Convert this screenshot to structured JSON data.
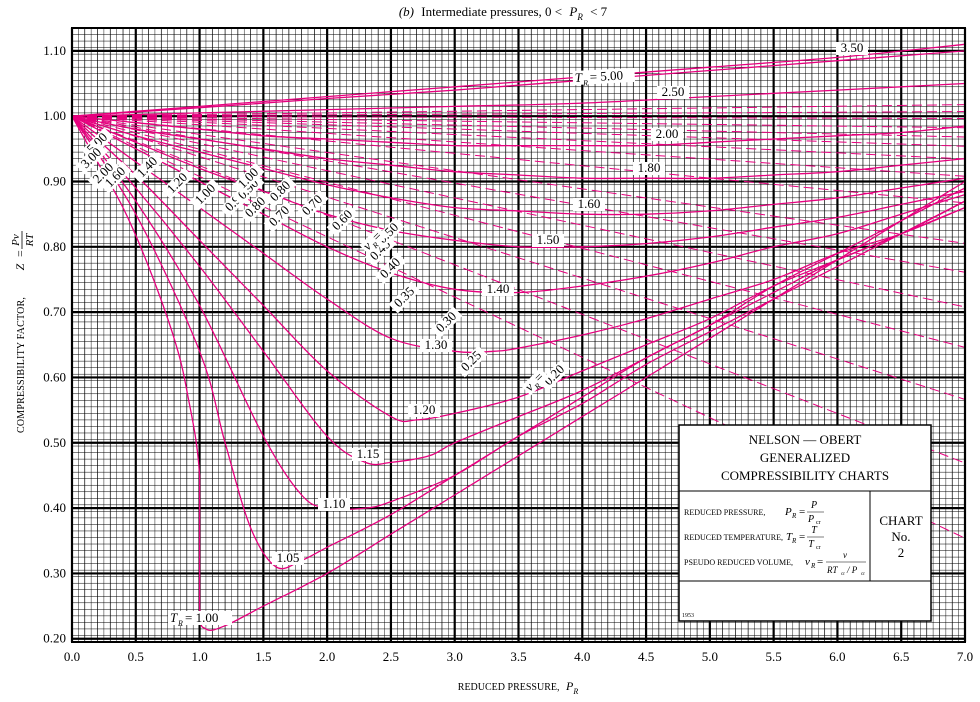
{
  "chart_data": {
    "type": "line",
    "title": "Intermediate pressures, 0 < P_R < 7",
    "title_prefix": "(b)",
    "title_text": "Intermediate pressures, 0 <",
    "title_symbol": "P",
    "title_sub": "R",
    "title_tail": "< 7",
    "xlabel": "REDUCED PRESSURE,",
    "xlabel_symbol": "P",
    "xlabel_sub": "R",
    "ylabel": "COMPRESSIBILITY FACTOR,",
    "ylabel_symbol": "Z",
    "ylabel_num": "Pv",
    "ylabel_den": "RT",
    "xlim": [
      0,
      7
    ],
    "ylim": [
      0.195,
      1.135
    ],
    "x_ticks": [
      "0.0",
      "0.5",
      "1.0",
      "1.5",
      "2.0",
      "2.5",
      "3.0",
      "3.5",
      "4.0",
      "4.5",
      "5.0",
      "5.5",
      "6.0",
      "6.5",
      "7.0"
    ],
    "y_ticks": [
      "0.20",
      "0.30",
      "0.40",
      "0.50",
      "0.60",
      "0.70",
      "0.80",
      "0.90",
      "1.00",
      "1.10"
    ],
    "grid": true,
    "isotherm_prefix": "T",
    "isotherm_sub": "R",
    "isotherms": [
      {
        "name": "1.00",
        "x": [
          0,
          0.2,
          0.4,
          0.6,
          0.8,
          0.9,
          1.0,
          1.0,
          1.05,
          1.2,
          1.5,
          2.0,
          2.5,
          3.0,
          3.5,
          4.0,
          4.5,
          5.0,
          5.5,
          6.0,
          6.5,
          7.0
        ],
        "y": [
          1.0,
          0.93,
          0.86,
          0.77,
          0.66,
          0.58,
          0.45,
          0.25,
          0.215,
          0.22,
          0.25,
          0.3,
          0.36,
          0.42,
          0.48,
          0.54,
          0.6,
          0.66,
          0.72,
          0.78,
          0.84,
          0.9
        ]
      },
      {
        "name": "1.05",
        "x": [
          0,
          0.5,
          1.0,
          1.2,
          1.4,
          1.6,
          1.8,
          2.0,
          2.5,
          3.0,
          3.5,
          4.0,
          4.5,
          5.0,
          5.5,
          6.0,
          6.5,
          7.0
        ],
        "y": [
          1.0,
          0.85,
          0.64,
          0.5,
          0.37,
          0.31,
          0.32,
          0.34,
          0.39,
          0.45,
          0.51,
          0.57,
          0.63,
          0.68,
          0.74,
          0.79,
          0.84,
          0.89
        ]
      },
      {
        "name": "1.10",
        "x": [
          0,
          0.5,
          1.0,
          1.5,
          1.8,
          2.0,
          2.3,
          2.5,
          3.0,
          3.5,
          4.0,
          4.5,
          5.0,
          5.5,
          6.0,
          6.5,
          7.0
        ],
        "y": [
          1.0,
          0.87,
          0.71,
          0.51,
          0.42,
          0.4,
          0.4,
          0.41,
          0.45,
          0.51,
          0.56,
          0.62,
          0.67,
          0.72,
          0.77,
          0.82,
          0.87
        ]
      },
      {
        "name": "1.15",
        "x": [
          0,
          0.5,
          1.0,
          1.5,
          2.0,
          2.3,
          2.5,
          2.8,
          3.0,
          3.5,
          4.0,
          4.5,
          5.0,
          5.5,
          6.0,
          6.5,
          7.0
        ],
        "y": [
          1.0,
          0.89,
          0.77,
          0.64,
          0.51,
          0.47,
          0.47,
          0.48,
          0.5,
          0.54,
          0.58,
          0.63,
          0.68,
          0.73,
          0.78,
          0.82,
          0.87
        ]
      },
      {
        "name": "1.20",
        "x": [
          0,
          0.5,
          1.0,
          1.5,
          2.0,
          2.5,
          2.7,
          3.0,
          3.5,
          4.0,
          4.5,
          5.0,
          5.5,
          6.0,
          6.5,
          7.0
        ],
        "y": [
          1.0,
          0.91,
          0.81,
          0.71,
          0.61,
          0.54,
          0.535,
          0.545,
          0.57,
          0.61,
          0.65,
          0.69,
          0.74,
          0.78,
          0.82,
          0.86
        ]
      },
      {
        "name": "1.30",
        "x": [
          0,
          0.5,
          1.0,
          1.5,
          2.0,
          2.5,
          3.0,
          3.3,
          3.5,
          4.0,
          4.5,
          5.0,
          5.5,
          6.0,
          6.5,
          7.0
        ],
        "y": [
          1.0,
          0.93,
          0.86,
          0.79,
          0.72,
          0.66,
          0.64,
          0.64,
          0.645,
          0.665,
          0.69,
          0.72,
          0.75,
          0.79,
          0.82,
          0.86
        ]
      },
      {
        "name": "1.40",
        "x": [
          0,
          0.5,
          1.0,
          1.5,
          2.0,
          2.5,
          3.0,
          3.5,
          4.0,
          4.5,
          5.0,
          5.5,
          6.0,
          6.5,
          7.0
        ],
        "y": [
          1.0,
          0.95,
          0.9,
          0.85,
          0.8,
          0.76,
          0.735,
          0.73,
          0.74,
          0.755,
          0.775,
          0.8,
          0.82,
          0.85,
          0.88
        ]
      },
      {
        "name": "1.50",
        "x": [
          0,
          0.5,
          1.0,
          1.5,
          2.0,
          2.5,
          3.0,
          3.5,
          4.0,
          4.5,
          5.0,
          5.5,
          6.0,
          6.5,
          7.0
        ],
        "y": [
          1.0,
          0.96,
          0.92,
          0.885,
          0.85,
          0.825,
          0.81,
          0.8,
          0.8,
          0.805,
          0.815,
          0.83,
          0.845,
          0.865,
          0.885
        ]
      },
      {
        "name": "1.60",
        "x": [
          0,
          0.5,
          1.0,
          1.5,
          2.0,
          2.5,
          3.0,
          3.5,
          4.0,
          4.5,
          5.0,
          5.5,
          6.0,
          6.5,
          7.0
        ],
        "y": [
          1.0,
          0.97,
          0.945,
          0.92,
          0.895,
          0.875,
          0.86,
          0.855,
          0.85,
          0.85,
          0.855,
          0.865,
          0.875,
          0.89,
          0.905
        ]
      },
      {
        "name": "1.80",
        "x": [
          0,
          0.5,
          1.0,
          1.5,
          2.0,
          2.5,
          3.0,
          3.5,
          4.0,
          4.5,
          5.0,
          5.5,
          6.0,
          6.5,
          7.0
        ],
        "y": [
          1.0,
          0.98,
          0.965,
          0.95,
          0.935,
          0.925,
          0.915,
          0.91,
          0.905,
          0.905,
          0.905,
          0.91,
          0.915,
          0.925,
          0.935
        ]
      },
      {
        "name": "2.00",
        "x": [
          0,
          0.5,
          1.0,
          1.5,
          2.0,
          2.5,
          3.0,
          3.5,
          4.0,
          4.5,
          5.0,
          5.5,
          6.0,
          6.5,
          7.0
        ],
        "y": [
          1.0,
          0.99,
          0.98,
          0.97,
          0.965,
          0.96,
          0.955,
          0.955,
          0.955,
          0.955,
          0.96,
          0.965,
          0.97,
          0.975,
          0.985
        ]
      },
      {
        "name": "2.50",
        "x": [
          0,
          1.0,
          2.0,
          3.0,
          4.0,
          5.0,
          6.0,
          7.0
        ],
        "y": [
          1.0,
          1.005,
          1.01,
          1.015,
          1.02,
          1.03,
          1.04,
          1.05
        ]
      },
      {
        "name": "3.50",
        "x": [
          0,
          1.0,
          2.0,
          3.0,
          4.0,
          5.0,
          6.0,
          7.0
        ],
        "y": [
          1.0,
          1.013,
          1.027,
          1.04,
          1.055,
          1.07,
          1.085,
          1.1
        ]
      },
      {
        "name": "5.00",
        "x": [
          0,
          1.0,
          2.0,
          3.0,
          4.0,
          5.0,
          6.0,
          7.0
        ],
        "y": [
          1.0,
          1.015,
          1.03,
          1.045,
          1.06,
          1.075,
          1.09,
          1.11
        ]
      }
    ],
    "left_labels": [
      "5.00",
      "3.00",
      "2.00",
      "1.60",
      "1.40",
      "1.20",
      "1.00",
      "0.90",
      "0.80",
      "0.70"
    ],
    "volume_prefix": "v",
    "volume_sub": "R",
    "volume_lines": [
      {
        "name": "0.20",
        "end_y": 0.635
      },
      {
        "name": "0.25",
        "end_y": 0.7
      },
      {
        "name": "0.30",
        "end_y": 0.755
      },
      {
        "name": "0.35",
        "end_y": 0.8
      },
      {
        "name": "0.40",
        "end_y": 0.835
      },
      {
        "name": "0.45",
        "end_y": 0.865
      },
      {
        "name": "0.50",
        "end_y": 0.89
      },
      {
        "name": "0.60",
        "end_y": 0.925
      },
      {
        "name": "0.70",
        "end_y": 0.948
      },
      {
        "name": "0.80",
        "end_y": 0.963
      },
      {
        "name": "0.90",
        "end_y": 0.974
      },
      {
        "name": "1.00",
        "end_y": 0.982
      },
      {
        "name": "1.20",
        "end_y": 0.99
      },
      {
        "name": "1.60",
        "end_y": 0.998
      },
      {
        "name": "2.00",
        "end_y": 1.004
      },
      {
        "name": "3.00",
        "end_y": 1.01
      }
    ],
    "info_box": {
      "title_lines": [
        "NELSON — OBERT",
        "GENERALIZED",
        "COMPRESSIBILITY CHARTS"
      ],
      "def_pressure": "REDUCED PRESSURE,",
      "def_temperature": "REDUCED TEMPERATURE,",
      "def_volume": "PSEUDO REDUCED VOLUME,",
      "sym_pr": "P",
      "sym_tr": "T",
      "sym_vr": "v",
      "sub_r": "R",
      "num_p": "P",
      "num_t": "T",
      "num_v": "v",
      "den_p": "P",
      "den_t": "T",
      "den_v": "RT",
      "den_v_tail": "/ P",
      "cr": "cr",
      "chart_label": [
        "CHART",
        "No.",
        "2"
      ],
      "year": "1953"
    },
    "colors": {
      "curve": "#e6007e",
      "grid": "#000000",
      "background": "#ffffff"
    }
  }
}
